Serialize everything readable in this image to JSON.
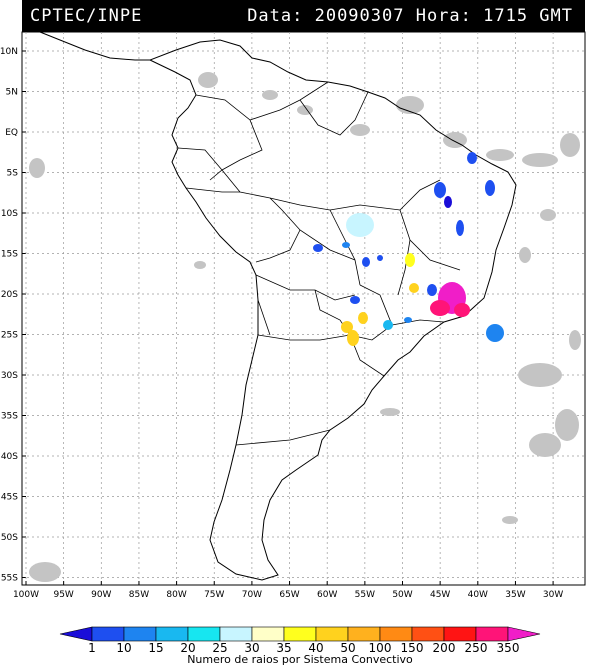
{
  "header": {
    "source": "CPTEC/INPE",
    "datetime": "Data: 20090307 Hora: 1715 GMT"
  },
  "map": {
    "lat_labels": [
      "10N",
      "5N",
      "EQ",
      "5S",
      "10S",
      "15S",
      "20S",
      "25S",
      "30S",
      "35S",
      "40S",
      "45S",
      "50S",
      "55S"
    ],
    "lon_labels": [
      "100W",
      "95W",
      "90W",
      "85W",
      "80W",
      "75W",
      "70W",
      "65W",
      "60W",
      "55W",
      "50W",
      "45W",
      "40W",
      "35W",
      "30W"
    ]
  },
  "colorbar": {
    "labels": [
      "1",
      "10",
      "15",
      "20",
      "25",
      "30",
      "35",
      "40",
      "50",
      "100",
      "150",
      "200",
      "250",
      "350"
    ],
    "colors": [
      "#1a0dd8",
      "#1e4ff0",
      "#1e84f0",
      "#19b8f0",
      "#17e6f0",
      "#c8f5ff",
      "#ffffc8",
      "#ffff1e",
      "#ffd21e",
      "#ffb11e",
      "#ff8a14",
      "#ff5014",
      "#ff1414",
      "#ff1478",
      "#f01ec8"
    ],
    "title": "Numero de raios por Sistema Convectivo"
  }
}
